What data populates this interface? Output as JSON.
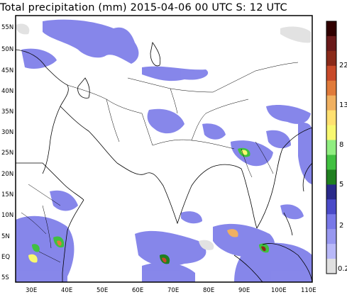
{
  "title": "Total precipitation (mm) 2015-04-06 00 UTC S: 12 UTC",
  "map": {
    "lat_labels": [
      "55N",
      "50N",
      "45N",
      "40N",
      "35N",
      "30N",
      "25N",
      "20N",
      "15N",
      "10N",
      "5N",
      "EQ",
      "5S"
    ],
    "lon_labels": [
      "30E",
      "40E",
      "50E",
      "60E",
      "70E",
      "80E",
      "90E",
      "100E",
      "110E"
    ],
    "lon_range": [
      27,
      111
    ],
    "lat_range": [
      -8,
      57
    ]
  },
  "legend": {
    "labels": [
      "22",
      "13",
      "8",
      "5",
      "2",
      "0.2"
    ],
    "colors": [
      "#300000",
      "#6a1a1a",
      "#8a2a1a",
      "#c84a2a",
      "#e07a3a",
      "#f0b060",
      "#ffe070",
      "#f8f870",
      "#90ee80",
      "#40c040",
      "#208020",
      "#2a2a8a",
      "#4a4ac8",
      "#7878e8",
      "#9898f0",
      "#b8b8f8",
      "#e0e0e0"
    ]
  }
}
